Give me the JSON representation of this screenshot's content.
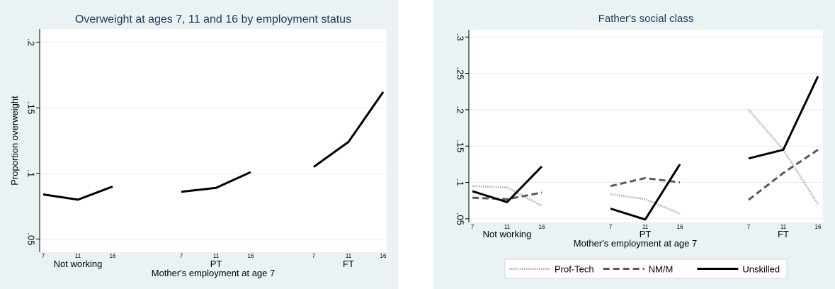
{
  "colors": {
    "panel_bg": "#eaf2f3",
    "plot_bg": "#ffffff",
    "title": "#1c3c60",
    "text": "#000000",
    "grid": "#e6eef0",
    "axis": "#000000"
  },
  "chart_data": [
    {
      "type": "line",
      "title": "Overweight at ages 7, 11 and 16 by employment status",
      "ylabel": "Proportion overweight",
      "xlabel": "Mother's employment at age 7",
      "ylim": [
        0.04,
        0.21
      ],
      "yticks": [
        ".05",
        ".1",
        ".15",
        ".2"
      ],
      "ytick_values": [
        0.05,
        0.1,
        0.15,
        0.2
      ],
      "grid": true,
      "groups": [
        {
          "label": "Not working",
          "ages": [
            "7",
            "11",
            "16"
          ]
        },
        {
          "label": "PT",
          "ages": [
            "7",
            "11",
            "16"
          ]
        },
        {
          "label": "FT",
          "ages": [
            "7",
            "11",
            "16"
          ]
        }
      ],
      "series": [
        {
          "name": "",
          "style": "solid",
          "color": "#000000",
          "values": [
            [
              0.084,
              0.08,
              0.09
            ],
            [
              0.086,
              0.089,
              0.101
            ],
            [
              0.105,
              0.124,
              0.162
            ]
          ]
        }
      ]
    },
    {
      "type": "line",
      "title": "Father's social class",
      "ylabel": "",
      "xlabel": "Mother's employment at age 7",
      "ylim": [
        0.045,
        0.31
      ],
      "yticks": [
        ".05",
        ".1",
        ".15",
        ".2",
        ".25",
        ".3"
      ],
      "ytick_values": [
        0.05,
        0.1,
        0.15,
        0.2,
        0.25,
        0.3
      ],
      "grid": true,
      "legend_position": "bottom",
      "groups": [
        {
          "label": "Not working",
          "ages": [
            "7",
            "11",
            "16"
          ]
        },
        {
          "label": "PT",
          "ages": [
            "7",
            "11",
            "16"
          ]
        },
        {
          "label": "FT",
          "ages": [
            "7",
            "11",
            "16"
          ]
        }
      ],
      "series": [
        {
          "name": "Prof-Tech",
          "style": "dotted",
          "color": "#b8b8b8",
          "values": [
            [
              0.095,
              0.093,
              0.068
            ],
            [
              0.084,
              0.077,
              0.057
            ],
            [
              0.2,
              0.145,
              0.07
            ]
          ]
        },
        {
          "name": "NM/M",
          "style": "dashed",
          "color": "#5a5a5a",
          "values": [
            [
              0.079,
              0.077,
              0.086
            ],
            [
              0.095,
              0.106,
              0.1
            ],
            [
              0.076,
              0.113,
              0.145
            ]
          ]
        },
        {
          "name": "Unskilled",
          "style": "solid",
          "color": "#000000",
          "values": [
            [
              0.088,
              0.073,
              0.122
            ],
            [
              0.064,
              0.049,
              0.125
            ],
            [
              0.133,
              0.145,
              0.246
            ]
          ]
        }
      ]
    }
  ]
}
